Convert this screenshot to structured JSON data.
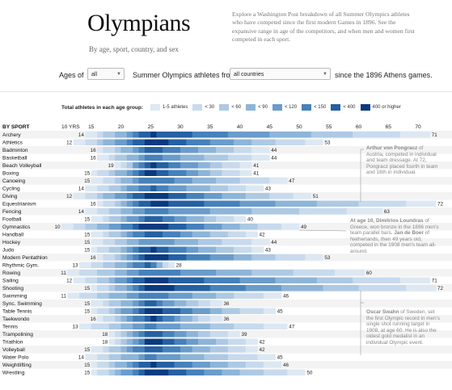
{
  "header": {
    "title": "Olympians",
    "subtitle": "By age, sport, country, and sex",
    "intro": "Explore a Washington Post breakdown of all Summer Olympics athletes who have competed since the first modern Games in 1896. See the expansive range in age of the competitors, and when men and women first competed in each sport."
  },
  "controls": {
    "ages_label": "Ages of",
    "ages_value": "all",
    "from_label": "Summer Olympics athletes from",
    "country_value": "all countries",
    "since_label": "since the 1896 Athens games."
  },
  "legend": {
    "title": "Total athletes in each age group:",
    "items": [
      {
        "label": "1-5 athletes",
        "color": "#dde8f3"
      },
      {
        "label": "< 30",
        "color": "#c8daed"
      },
      {
        "label": "< 60",
        "color": "#adc9e4"
      },
      {
        "label": "< 90",
        "color": "#8db5d9"
      },
      {
        "label": "< 120",
        "color": "#6a9ccb"
      },
      {
        "label": "< 150",
        "color": "#4681bb"
      },
      {
        "label": "< 400",
        "color": "#2560a3"
      },
      {
        "label": "400 or higher",
        "color": "#0b3a80"
      }
    ]
  },
  "notes": [
    {
      "bold": "Arthur von Pongracz",
      "text": " of Austria, competed in individual and team dressage. At 72, Pongracz placed fourth in team and 16th in individual."
    },
    {
      "bold": "At age 10, Dimitrios Loundras",
      "text": " of Greece, won bronze in the 1896 men's team parallel bars. ",
      "bold2": "Jan de Boer",
      "text2": " of Netherlands, then 49 years old, competed in the 1908 men's team all-around."
    },
    {
      "bold": "Oscar Swahn",
      "text": " of Sweden, set the first Olympic record in men's single shot running target in 1908, at age 60. He is also the oldest gold medalist in an individual Olympic event."
    }
  ],
  "chart_data": {
    "type": "heatmap",
    "row_header": "BY SPORT",
    "x_ticks": [
      "10 YRS",
      "15",
      "20",
      "25",
      "30",
      "35",
      "40",
      "45",
      "50",
      "55",
      "60",
      "65",
      "70"
    ],
    "x_tick_values": [
      10,
      15,
      20,
      25,
      30,
      35,
      40,
      45,
      50,
      55,
      60,
      65,
      70
    ],
    "color_scale": [
      "#dde8f3",
      "#c8daed",
      "#adc9e4",
      "#8db5d9",
      "#6a9ccb",
      "#4681bb",
      "#2560a3",
      "#0b3a80"
    ],
    "rows": [
      {
        "sport": "Archery",
        "min": 14,
        "max": 71
      },
      {
        "sport": "Athletics",
        "min": 12,
        "max": 53
      },
      {
        "sport": "Badminton",
        "min": 16,
        "max": 44
      },
      {
        "sport": "Basketball",
        "min": 16,
        "max": 44
      },
      {
        "sport": "Beach Volleyball",
        "min": 19,
        "max": 41
      },
      {
        "sport": "Boxing",
        "min": 15,
        "max": 41
      },
      {
        "sport": "Canoeing",
        "min": 15,
        "max": 47
      },
      {
        "sport": "Cycling",
        "min": 14,
        "max": 43
      },
      {
        "sport": "Diving",
        "min": 12,
        "max": 51
      },
      {
        "sport": "Equestrianism",
        "min": 16,
        "max": 72
      },
      {
        "sport": "Fencing",
        "min": 14,
        "max": 63
      },
      {
        "sport": "Football",
        "min": 15,
        "max": 40
      },
      {
        "sport": "Gymnastics",
        "min": 10,
        "max": 49
      },
      {
        "sport": "Handball",
        "min": 15,
        "max": 42
      },
      {
        "sport": "Hockey",
        "min": 15,
        "max": 44
      },
      {
        "sport": "Judo",
        "min": 15,
        "max": 43
      },
      {
        "sport": "Modern Pentathlon",
        "min": 16,
        "max": 53
      },
      {
        "sport": "Rhythmic Gym.",
        "min": 13,
        "max": 28
      },
      {
        "sport": "Rowing",
        "min": 11,
        "max": 60
      },
      {
        "sport": "Sailing",
        "min": 12,
        "max": 71
      },
      {
        "sport": "Shooting",
        "min": 15,
        "max": 72
      },
      {
        "sport": "Swimming",
        "min": 11,
        "max": 46
      },
      {
        "sport": "Sync. Swimming",
        "min": 15,
        "max": 36
      },
      {
        "sport": "Table Tennis",
        "min": 15,
        "max": 45
      },
      {
        "sport": "Taekwondo",
        "min": 16,
        "max": 36
      },
      {
        "sport": "Tennis",
        "min": 13,
        "max": 47
      },
      {
        "sport": "Trampolining",
        "min": 18,
        "max": 39
      },
      {
        "sport": "Triathlon",
        "min": 18,
        "max": 42
      },
      {
        "sport": "Volleyball",
        "min": 15,
        "max": 42
      },
      {
        "sport": "Water Polo",
        "min": 14,
        "max": 45
      },
      {
        "sport": "Weightlifting",
        "min": 15,
        "max": 46
      },
      {
        "sport": "Wrestling",
        "min": 15,
        "max": 50
      }
    ]
  }
}
